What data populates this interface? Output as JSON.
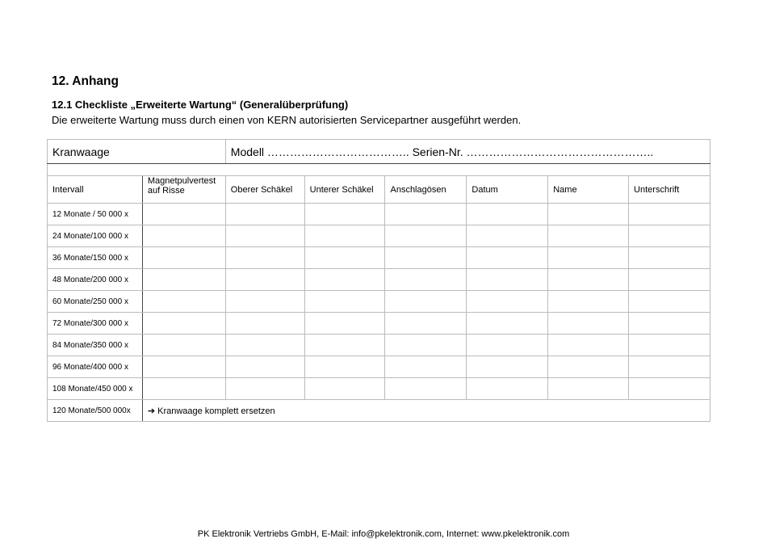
{
  "heading": "12.  Anhang",
  "subheading": "12.1    Checkliste „Erweiterte Wartung“ (Generalüberprüfung)",
  "intro": "Die erweiterte Wartung muss durch einen von KERN autorisierten Servicepartner ausgeführt werden.",
  "table": {
    "kranwaage": "Kranwaage",
    "modell": "Modell ………………………………..  Serien-Nr. …………………………………………..",
    "headers": [
      "Intervall",
      "Magnetpulvertest auf Risse",
      "Oberer Schäkel",
      "Unterer Schäkel",
      "Anschlagösen",
      "Datum",
      "Name",
      "Unterschrift"
    ],
    "intervals": [
      "12 Monate / 50 000 x",
      "24 Monate/100 000 x",
      "36 Monate/150 000 x",
      "48 Monate/200 000 x",
      "60 Monate/250 000 x",
      "72 Monate/300 000 x",
      "84 Monate/350 000 x",
      "96 Monate/400 000 x",
      "108 Monate/450 000 x"
    ],
    "last_interval": "120 Monate/500 000x",
    "last_note": "➔ Kranwaage komplett ersetzen"
  },
  "footer": "PK Elektronik Vertriebs GmbH, E-Mail: info@pkelektronik.com, Internet: www.pkelektronik.com"
}
